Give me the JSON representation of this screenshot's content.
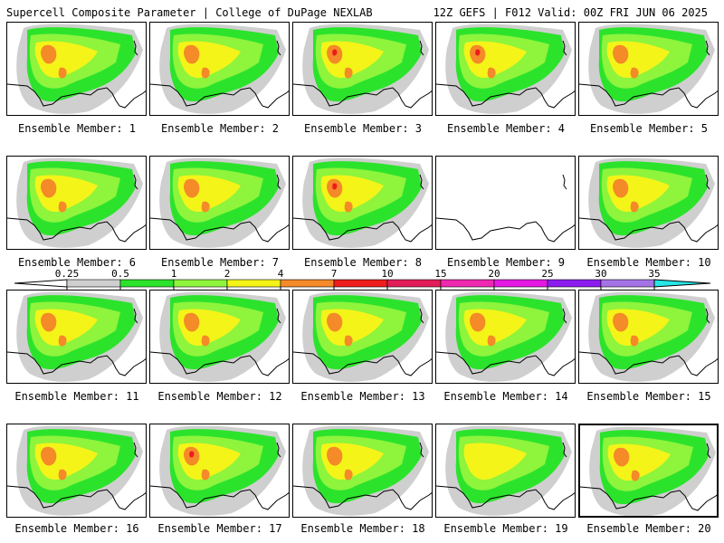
{
  "header": {
    "left": "Supercell Composite Parameter | College of DuPage NEXLAB",
    "right": "12Z GEFS | F012 Valid: 00Z FRI JUN 06 2025"
  },
  "caption_prefix": "Ensemble Member:",
  "members": [
    {
      "id": "1",
      "intensity": 2,
      "blank": false,
      "selected": false
    },
    {
      "id": "2",
      "intensity": 2,
      "blank": false,
      "selected": false
    },
    {
      "id": "3",
      "intensity": 3,
      "blank": false,
      "selected": false
    },
    {
      "id": "4",
      "intensity": 3,
      "blank": false,
      "selected": false
    },
    {
      "id": "5",
      "intensity": 2,
      "blank": false,
      "selected": false
    },
    {
      "id": "6",
      "intensity": 2,
      "blank": false,
      "selected": false
    },
    {
      "id": "7",
      "intensity": 2,
      "blank": false,
      "selected": false
    },
    {
      "id": "8",
      "intensity": 3,
      "blank": false,
      "selected": false
    },
    {
      "id": "9",
      "intensity": 0,
      "blank": true,
      "selected": false
    },
    {
      "id": "10",
      "intensity": 2,
      "blank": false,
      "selected": false
    },
    {
      "id": "11",
      "intensity": 2,
      "blank": false,
      "selected": false
    },
    {
      "id": "12",
      "intensity": 2,
      "blank": false,
      "selected": false
    },
    {
      "id": "13",
      "intensity": 2,
      "blank": false,
      "selected": false
    },
    {
      "id": "14",
      "intensity": 2,
      "blank": false,
      "selected": false
    },
    {
      "id": "15",
      "intensity": 2,
      "blank": false,
      "selected": false
    },
    {
      "id": "16",
      "intensity": 2,
      "blank": false,
      "selected": false
    },
    {
      "id": "17",
      "intensity": 3,
      "blank": false,
      "selected": false
    },
    {
      "id": "18",
      "intensity": 2,
      "blank": false,
      "selected": false
    },
    {
      "id": "19",
      "intensity": 1,
      "blank": false,
      "selected": false
    },
    {
      "id": "20",
      "intensity": 2,
      "blank": false,
      "selected": true
    }
  ],
  "colorbar": {
    "labels": [
      "0.25",
      "0.5",
      "1",
      "2",
      "4",
      "7",
      "10",
      "15",
      "20",
      "25",
      "30",
      "35"
    ],
    "colors": [
      "#cfcfcf",
      "#2ce32c",
      "#8ef43c",
      "#f4f418",
      "#f48a28",
      "#ee1c1c",
      "#e21c58",
      "#ee28b0",
      "#e618e6",
      "#8c1cf0",
      "#a673e6",
      "#28e6e6"
    ]
  },
  "colors": {
    "gray": "#cfcfcf",
    "green": "#2ce32c",
    "lightgreen": "#8ef43c",
    "yellow": "#f4f418",
    "orange": "#f48a28",
    "red": "#ee1c1c"
  }
}
